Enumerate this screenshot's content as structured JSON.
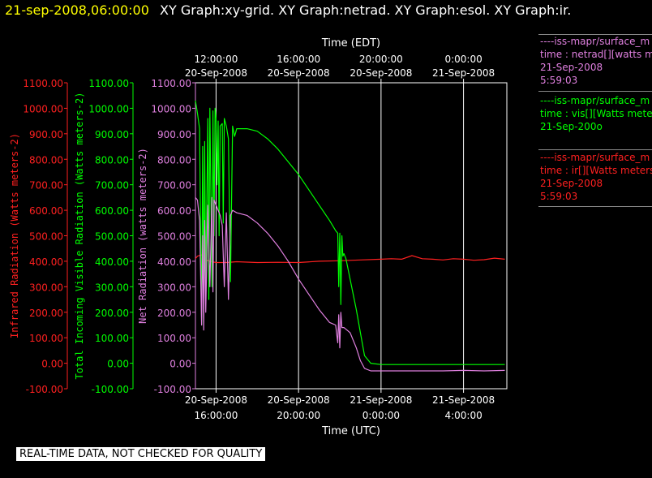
{
  "header": {
    "timestamp": "21-sep-2008,06:00:00",
    "graph_titles": "XY Graph:xy-grid.  XY Graph:netrad.  XY Graph:esol.  XY Graph:ir."
  },
  "legend": [
    {
      "line1": "----iss-mapr/surface_m",
      "line2": "time : netrad[][watts m",
      "line3": "21-Sep-2008",
      "line4": "5:59:03",
      "color": "#e080e0"
    },
    {
      "line1": "----iss-mapr/surface_m",
      "line2": "time : vis[][Watts mete",
      "line3": "21-Sep-200o",
      "line4": "",
      "color": "#00ff00"
    },
    {
      "line1": "----iss-mapr/surface_m",
      "line2": "time : ir[][Watts meters",
      "line3": "21-Sep-2008",
      "line4": "5:59:03",
      "color": "#ff2020"
    }
  ],
  "notice": "REAL-TIME DATA, NOT CHECKED FOR QUALITY",
  "colors": {
    "background": "#000000",
    "grid": "#ffffff",
    "ir": "#ff2020",
    "vis": "#00ff00",
    "net": "#e080e0"
  },
  "chart_data": {
    "type": "line",
    "x_unit": "hours from 20-Sep-2008 15:00 UTC",
    "xlim": [
      0,
      15.1
    ],
    "ylim": [
      -100,
      1100
    ],
    "grid": true,
    "top_axis": {
      "label": "Time (EDT)",
      "ticks": [
        {
          "x": 1.0,
          "line1": "12:00:00",
          "line2": "20-Sep-2008"
        },
        {
          "x": 5.0,
          "line1": "16:00:00",
          "line2": "20-Sep-2008"
        },
        {
          "x": 9.0,
          "line1": "20:00:00",
          "line2": "20-Sep-2008"
        },
        {
          "x": 13.0,
          "line1": "0:00:00",
          "line2": "21-Sep-2008"
        }
      ]
    },
    "bottom_axis": {
      "label": "Time (UTC)",
      "ticks": [
        {
          "x": 1.0,
          "line1": "20-Sep-2008",
          "line2": "16:00:00"
        },
        {
          "x": 5.0,
          "line1": "20-Sep-2008",
          "line2": "20:00:00"
        },
        {
          "x": 9.0,
          "line1": "21-Sep-2008",
          "line2": "0:00:00"
        },
        {
          "x": 13.0,
          "line1": "21-Sep-2008",
          "line2": "4:00:00"
        }
      ]
    },
    "y_ticks": [
      -100,
      0,
      100,
      200,
      300,
      400,
      500,
      600,
      700,
      800,
      900,
      1000,
      1100
    ],
    "y_tick_labels": [
      "-100.00",
      "0.00",
      "100.00",
      "200.00",
      "300.00",
      "400.00",
      "500.00",
      "600.00",
      "700.00",
      "800.00",
      "900.00",
      "1000.00",
      "1100.00"
    ],
    "axes": [
      {
        "name": "ir",
        "label": "Infrared Radiation (Watts meters-2)",
        "color": "#ff2020"
      },
      {
        "name": "vis",
        "label": "Total Incoming Visible Radiation (Watts meters-2)",
        "color": "#00ff00"
      },
      {
        "name": "net",
        "label": "Net Radiation (watts meters-2)",
        "color": "#e080e0"
      }
    ],
    "series": [
      {
        "key": "ir",
        "color": "#ff2020",
        "x": [
          0.0,
          0.1,
          0.3,
          0.5,
          0.7,
          1.0,
          1.5,
          2.0,
          3.0,
          4.0,
          5.0,
          6.0,
          7.0,
          8.0,
          9.0,
          9.5,
          10.0,
          10.5,
          11.0,
          11.5,
          12.0,
          12.5,
          13.0,
          13.5,
          14.0,
          14.5,
          15.0
        ],
        "y": [
          410,
          420,
          425,
          405,
          400,
          395,
          395,
          398,
          395,
          396,
          395,
          400,
          402,
          405,
          408,
          410,
          408,
          422,
          410,
          408,
          405,
          410,
          408,
          404,
          406,
          412,
          408
        ]
      },
      {
        "key": "vis",
        "color": "#00ff00",
        "x": [
          0.0,
          0.1,
          0.2,
          0.3,
          0.35,
          0.4,
          0.45,
          0.5,
          0.6,
          0.65,
          0.7,
          0.8,
          0.85,
          0.9,
          0.95,
          1.0,
          1.05,
          1.1,
          1.15,
          1.2,
          1.3,
          1.35,
          1.4,
          1.5,
          1.6,
          1.7,
          1.8,
          1.9,
          2.0,
          2.5,
          3.0,
          3.5,
          4.0,
          4.5,
          5.0,
          5.5,
          6.0,
          6.5,
          6.8,
          6.9,
          6.95,
          7.0,
          7.05,
          7.1,
          7.15,
          7.2,
          7.3,
          7.5,
          7.8,
          8.0,
          8.2,
          8.5,
          9.0,
          10.0,
          11.0,
          12.0,
          13.0,
          14.0,
          15.0
        ],
        "y": [
          1030,
          980,
          920,
          150,
          850,
          200,
          870,
          300,
          960,
          250,
          1000,
          300,
          990,
          500,
          1000,
          960,
          700,
          950,
          500,
          930,
          940,
          550,
          960,
          930,
          880,
          320,
          930,
          890,
          920,
          920,
          910,
          880,
          840,
          790,
          740,
          680,
          620,
          560,
          520,
          510,
          300,
          510,
          230,
          500,
          420,
          430,
          410,
          330,
          210,
          120,
          30,
          0,
          -5,
          -5,
          -5,
          -5,
          -5,
          -5,
          -5
        ]
      },
      {
        "key": "net",
        "color": "#e080e0",
        "x": [
          0.0,
          0.1,
          0.2,
          0.3,
          0.35,
          0.4,
          0.45,
          0.5,
          0.6,
          0.7,
          0.8,
          0.85,
          0.9,
          1.0,
          1.1,
          1.2,
          1.3,
          1.4,
          1.5,
          1.6,
          1.7,
          1.8,
          2.0,
          2.5,
          3.0,
          3.5,
          4.0,
          4.5,
          5.0,
          5.5,
          6.0,
          6.5,
          6.8,
          6.9,
          6.95,
          7.0,
          7.05,
          7.1,
          7.2,
          7.5,
          7.8,
          8.0,
          8.2,
          8.5,
          9.0,
          10.0,
          11.0,
          12.0,
          13.0,
          14.0,
          15.0
        ],
        "y": [
          650,
          640,
          560,
          150,
          500,
          130,
          560,
          200,
          620,
          300,
          650,
          280,
          640,
          620,
          600,
          580,
          540,
          300,
          590,
          250,
          580,
          600,
          590,
          580,
          550,
          510,
          460,
          400,
          330,
          270,
          210,
          160,
          150,
          80,
          190,
          60,
          200,
          140,
          140,
          120,
          60,
          10,
          -20,
          -30,
          -30,
          -30,
          -30,
          -30,
          -28,
          -30,
          -28
        ]
      }
    ]
  }
}
